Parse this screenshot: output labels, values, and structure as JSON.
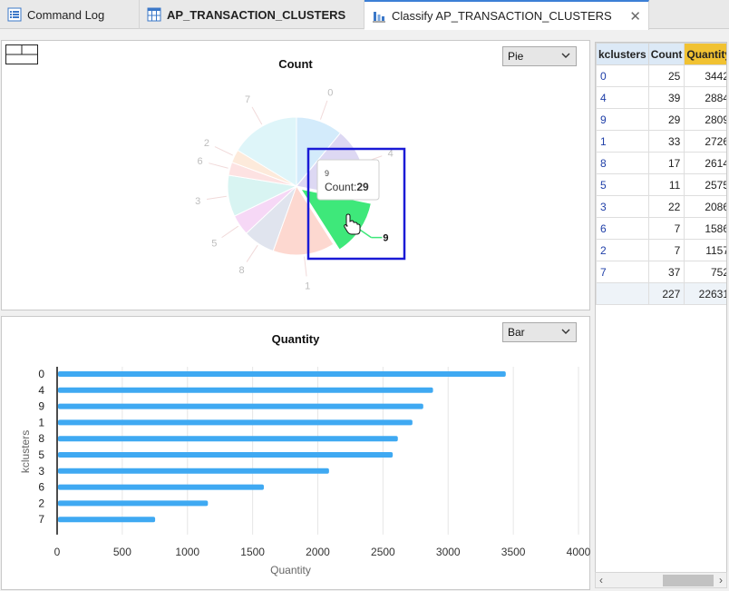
{
  "tabs": [
    {
      "label": "Command Log",
      "icon": "list-icon",
      "bold": false,
      "active": false
    },
    {
      "label": "AP_TRANSACTION_CLUSTERS",
      "icon": "table-icon",
      "bold": true,
      "active": false
    },
    {
      "label": "Classify AP_TRANSACTION_CLUSTERS",
      "icon": "chart-icon",
      "bold": false,
      "active": true
    }
  ],
  "top_panel": {
    "title": "Count",
    "chart_type_select": "Pie",
    "tooltip": {
      "key": "9",
      "label": "Count:",
      "value": "29"
    },
    "highlight_label": "9"
  },
  "bottom_panel": {
    "title": "Quantity",
    "chart_type_select": "Bar"
  },
  "chart_data": [
    {
      "type": "pie",
      "title": "Count",
      "categories": [
        "0",
        "4",
        "9",
        "1",
        "8",
        "5",
        "3",
        "6",
        "2",
        "7"
      ],
      "values": [
        25,
        39,
        29,
        33,
        17,
        11,
        22,
        7,
        7,
        37
      ],
      "highlighted": "9",
      "colors": [
        "#d3ebfb",
        "#ddd8f3",
        "#3ee87a",
        "#fdd8d0",
        "#e0e4ee",
        "#f6d8f6",
        "#d8f4f2",
        "#fde2e2",
        "#fdeadb",
        "#def5f9"
      ]
    },
    {
      "type": "bar",
      "orientation": "horizontal",
      "title": "Quantity",
      "categories": [
        "0",
        "4",
        "9",
        "1",
        "8",
        "5",
        "3",
        "6",
        "2",
        "7"
      ],
      "values": [
        3442,
        2884,
        2809,
        2726,
        2614,
        2575,
        2086,
        1586,
        1157,
        752
      ],
      "xlabel": "Quantity",
      "ylabel": "kclusters",
      "xlim": [
        0,
        4000
      ],
      "xticks": [
        "0",
        "500",
        "1000",
        "1500",
        "2000",
        "2500",
        "3000",
        "3500",
        "4000"
      ],
      "bar_color": "#3fa9f2",
      "grid": true
    }
  ],
  "table": {
    "headers": [
      "kclusters",
      "Count",
      "Quantity"
    ],
    "rows": [
      [
        "0",
        "25",
        "3442"
      ],
      [
        "4",
        "39",
        "2884"
      ],
      [
        "9",
        "29",
        "2809"
      ],
      [
        "1",
        "33",
        "2726"
      ],
      [
        "8",
        "17",
        "2614"
      ],
      [
        "5",
        "11",
        "2575"
      ],
      [
        "3",
        "22",
        "2086"
      ],
      [
        "6",
        "7",
        "1586"
      ],
      [
        "2",
        "7",
        "1157"
      ],
      [
        "7",
        "37",
        "752"
      ]
    ],
    "totals": [
      "",
      "227",
      "22631"
    ]
  }
}
